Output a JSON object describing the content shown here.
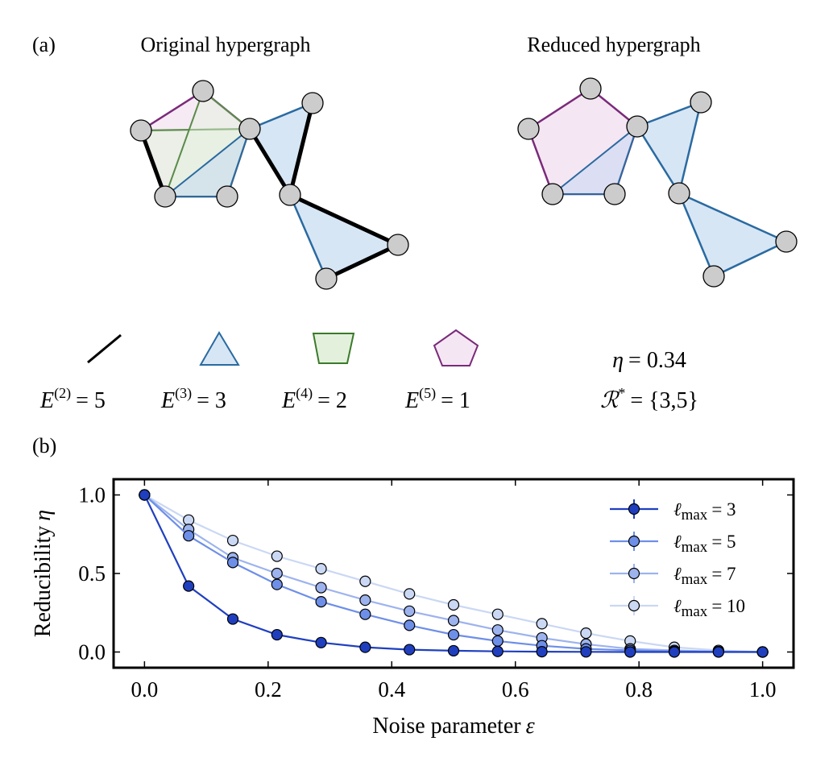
{
  "panel_a": {
    "label": "(a)",
    "original_title": "Original hypergraph",
    "reduced_title": "Reduced hypergraph",
    "legend": [
      {
        "shape": "line",
        "symbol": "E",
        "sup": "(2)",
        "value": "= 5"
      },
      {
        "shape": "triangle",
        "symbol": "E",
        "sup": "(3)",
        "value": "= 3"
      },
      {
        "shape": "trapezoid",
        "symbol": "E",
        "sup": "(4)",
        "value": "= 2"
      },
      {
        "shape": "pentagon",
        "symbol": "E",
        "sup": "(5)",
        "value": "= 1"
      }
    ],
    "eta_symbol": "η",
    "eta_value": "= 0.34",
    "r_symbol": "ℛ",
    "r_sup": "*",
    "r_value": "= {3,5}",
    "colors": {
      "edge2": "#000000",
      "edge3": "#2a6aa0",
      "edge4": "#3a7a2a",
      "edge5": "#7a2a7a",
      "node": "#cccccc"
    }
  },
  "panel_b": {
    "label": "(b)"
  },
  "chart_data": {
    "type": "line",
    "title": "",
    "xlabel": "Noise parameter",
    "xlabel_symbol": "ε",
    "ylabel": "Reducibility",
    "ylabel_symbol": "η",
    "xlim": [
      -0.05,
      1.05
    ],
    "ylim": [
      -0.1,
      1.1
    ],
    "xticks": [
      "0.0",
      "0.2",
      "0.4",
      "0.6",
      "0.8",
      "1.0"
    ],
    "yticks": [
      "0.0",
      "0.5",
      "1.0"
    ],
    "legend_position": "top-right",
    "x": [
      0.0,
      0.0714,
      0.1429,
      0.2143,
      0.2857,
      0.3571,
      0.4286,
      0.5,
      0.5714,
      0.6429,
      0.7143,
      0.7857,
      0.8571,
      0.9286,
      1.0
    ],
    "series": [
      {
        "name": "ℓmax = 3",
        "name_main": "ℓ",
        "name_sub": "max",
        "name_rest": "= 3",
        "color": "#1f3fbf",
        "values": [
          1.0,
          0.42,
          0.21,
          0.11,
          0.06,
          0.03,
          0.015,
          0.008,
          0.004,
          0.002,
          0.001,
          0.0,
          0.0,
          0.0,
          0.0
        ]
      },
      {
        "name": "ℓmax = 5",
        "name_main": "ℓ",
        "name_sub": "max",
        "name_rest": "= 5",
        "color": "#6e8fe8",
        "values": [
          1.0,
          0.74,
          0.57,
          0.43,
          0.32,
          0.24,
          0.17,
          0.11,
          0.07,
          0.04,
          0.02,
          0.01,
          0.004,
          0.001,
          0.0
        ]
      },
      {
        "name": "ℓmax = 7",
        "name_main": "ℓ",
        "name_sub": "max",
        "name_rest": "= 7",
        "color": "#9db3ee",
        "values": [
          1.0,
          0.78,
          0.6,
          0.5,
          0.41,
          0.33,
          0.26,
          0.2,
          0.14,
          0.09,
          0.05,
          0.02,
          0.01,
          0.003,
          0.0
        ]
      },
      {
        "name": "ℓmax = 10",
        "name_main": "ℓ",
        "name_sub": "max",
        "name_rest": "= 10",
        "color": "#cad8f4",
        "values": [
          1.0,
          0.84,
          0.71,
          0.61,
          0.53,
          0.45,
          0.37,
          0.3,
          0.24,
          0.18,
          0.12,
          0.07,
          0.03,
          0.01,
          0.0
        ]
      }
    ]
  }
}
